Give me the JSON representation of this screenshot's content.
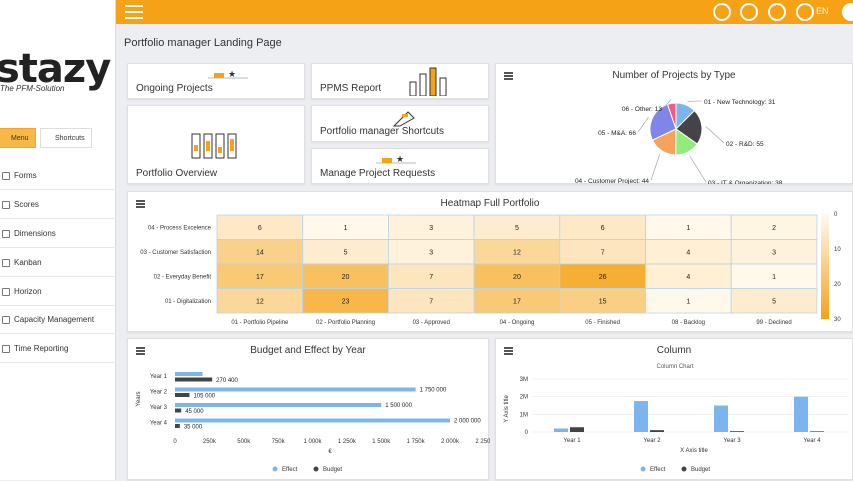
{
  "sidebar": {
    "logo_text": "stazy",
    "tagline": "The PFM-Solution",
    "tabs": [
      {
        "label": "Menu"
      },
      {
        "label": "Shortcuts"
      }
    ],
    "items": [
      {
        "label": "Forms"
      },
      {
        "label": "Scores"
      },
      {
        "label": "Dimensions"
      },
      {
        "label": "Kanban"
      },
      {
        "label": "Horizon"
      },
      {
        "label": "Capacity Management"
      },
      {
        "label": "Time Reporting"
      }
    ]
  },
  "topbar": {
    "lang": "EN",
    "colors": {
      "bar": "#f5a216"
    }
  },
  "page": {
    "title": "Portfolio manager Landing Page"
  },
  "tiles": [
    {
      "label": "Ongoing Projects"
    },
    {
      "label": "PPMS Report"
    },
    {
      "label": "Portfolio Overview"
    },
    {
      "label": "Portfolio manager Shortcuts"
    },
    {
      "label": "Manage Project Requests"
    }
  ],
  "pie": {
    "title": "Number of Projects by Type",
    "slices": [
      {
        "label": "01 - New Technology: 31",
        "value": 31,
        "color": "#7cb5ec"
      },
      {
        "label": "02 - R&D: 55",
        "value": 55,
        "color": "#434348"
      },
      {
        "label": "03 - IT & Organization: 38",
        "value": 38,
        "color": "#90ed7d"
      },
      {
        "label": "04 - Customer Project: 44",
        "value": 44,
        "color": "#f7a35c"
      },
      {
        "label": "05 - M&A: 66",
        "value": 66,
        "color": "#8085e9"
      },
      {
        "label": "06 - Other: 13",
        "value": 13,
        "color": "#f15c80"
      }
    ]
  },
  "heatmap": {
    "title": "Heatmap Full Portfolio",
    "rows": [
      "04 - Process Excelence",
      "03 - Customer Satisfaction",
      "02 - Everyday Benefit",
      "01 - Digitalization"
    ],
    "cols": [
      "01 - Portfolio Pipeline",
      "02 - Portfolio Planning",
      "03 - Approved",
      "04 - Ongoing",
      "05 - Finished",
      "08 - Backlog",
      "99 - Declined"
    ],
    "values": [
      [
        6,
        1,
        3,
        5,
        6,
        1,
        2
      ],
      [
        14,
        5,
        3,
        12,
        7,
        4,
        3
      ],
      [
        17,
        20,
        7,
        20,
        26,
        4,
        1
      ],
      [
        12,
        23,
        7,
        17,
        15,
        1,
        5
      ]
    ],
    "scale_labels": [
      "0",
      "10",
      "20",
      "30"
    ],
    "max": 30
  },
  "budget": {
    "title": "Budget and Effect by Year",
    "ylabel": "Years",
    "xlabel": "€",
    "categories": [
      "Year 1",
      "Year 2",
      "Year 3",
      "Year 4"
    ],
    "effect": [
      200000,
      1750000,
      1500000,
      2000000
    ],
    "budget": [
      270400,
      105000,
      45000,
      35000
    ],
    "effect_labels": [
      "",
      "1 750 000",
      "1 500 000",
      "2 000 000"
    ],
    "budget_labels": [
      "270 400",
      "105 000",
      "45 000",
      "35 000"
    ],
    "ticks": [
      "0",
      "250k",
      "500k",
      "750k",
      "1 000k",
      "1 250k",
      "1 500k",
      "1 750k",
      "2 000k",
      "2 250k"
    ],
    "legend": [
      "Effect",
      "Budget"
    ],
    "colors": {
      "effect": "#7cb5ec",
      "budget": "#434348"
    }
  },
  "column": {
    "title": "Column",
    "subtitle": "Column Chart",
    "ylabel": "Y Axis title",
    "xlabel": "X Axis title",
    "categories": [
      "Year 1",
      "Year 2",
      "Year 3",
      "Year 4"
    ],
    "effect": [
      0.2,
      1.75,
      1.5,
      2.0
    ],
    "budget": [
      0.27,
      0.105,
      0.045,
      0.035
    ],
    "ticks": [
      "0",
      "1M",
      "2M",
      "3M"
    ],
    "legend": [
      "Effect",
      "Budget"
    ]
  },
  "chart_data": [
    {
      "type": "pie",
      "title": "Number of Projects by Type",
      "categories": [
        "01 - New Technology",
        "02 - R&D",
        "03 - IT & Organization",
        "04 - Customer Project",
        "05 - M&A",
        "06 - Other"
      ],
      "values": [
        31,
        55,
        38,
        44,
        66,
        13
      ]
    },
    {
      "type": "heatmap",
      "title": "Heatmap Full Portfolio",
      "x": [
        "01 - Portfolio Pipeline",
        "02 - Portfolio Planning",
        "03 - Approved",
        "04 - Ongoing",
        "05 - Finished",
        "08 - Backlog",
        "99 - Declined"
      ],
      "y": [
        "04 - Process Excelence",
        "03 - Customer Satisfaction",
        "02 - Everyday Benefit",
        "01 - Digitalization"
      ],
      "values": [
        [
          6,
          1,
          3,
          5,
          6,
          1,
          2
        ],
        [
          14,
          5,
          3,
          12,
          7,
          4,
          3
        ],
        [
          17,
          20,
          7,
          20,
          26,
          4,
          1
        ],
        [
          12,
          23,
          7,
          17,
          15,
          1,
          5
        ]
      ]
    },
    {
      "type": "bar",
      "title": "Budget and Effect by Year",
      "categories": [
        "Year 1",
        "Year 2",
        "Year 3",
        "Year 4"
      ],
      "series": [
        {
          "name": "Effect",
          "values": [
            200000,
            1750000,
            1500000,
            2000000
          ]
        },
        {
          "name": "Budget",
          "values": [
            270400,
            105000,
            45000,
            35000
          ]
        }
      ],
      "xlabel": "€",
      "ylabel": "Years"
    },
    {
      "type": "bar",
      "title": "Column",
      "subtitle": "Column Chart",
      "categories": [
        "Year 1",
        "Year 2",
        "Year 3",
        "Year 4"
      ],
      "series": [
        {
          "name": "Effect",
          "values": [
            200000,
            1750000,
            1500000,
            2000000
          ]
        },
        {
          "name": "Budget",
          "values": [
            270400,
            105000,
            45000,
            35000
          ]
        }
      ],
      "xlabel": "X Axis title",
      "ylabel": "Y Axis title",
      "ylim": [
        0,
        3000000
      ]
    }
  ]
}
